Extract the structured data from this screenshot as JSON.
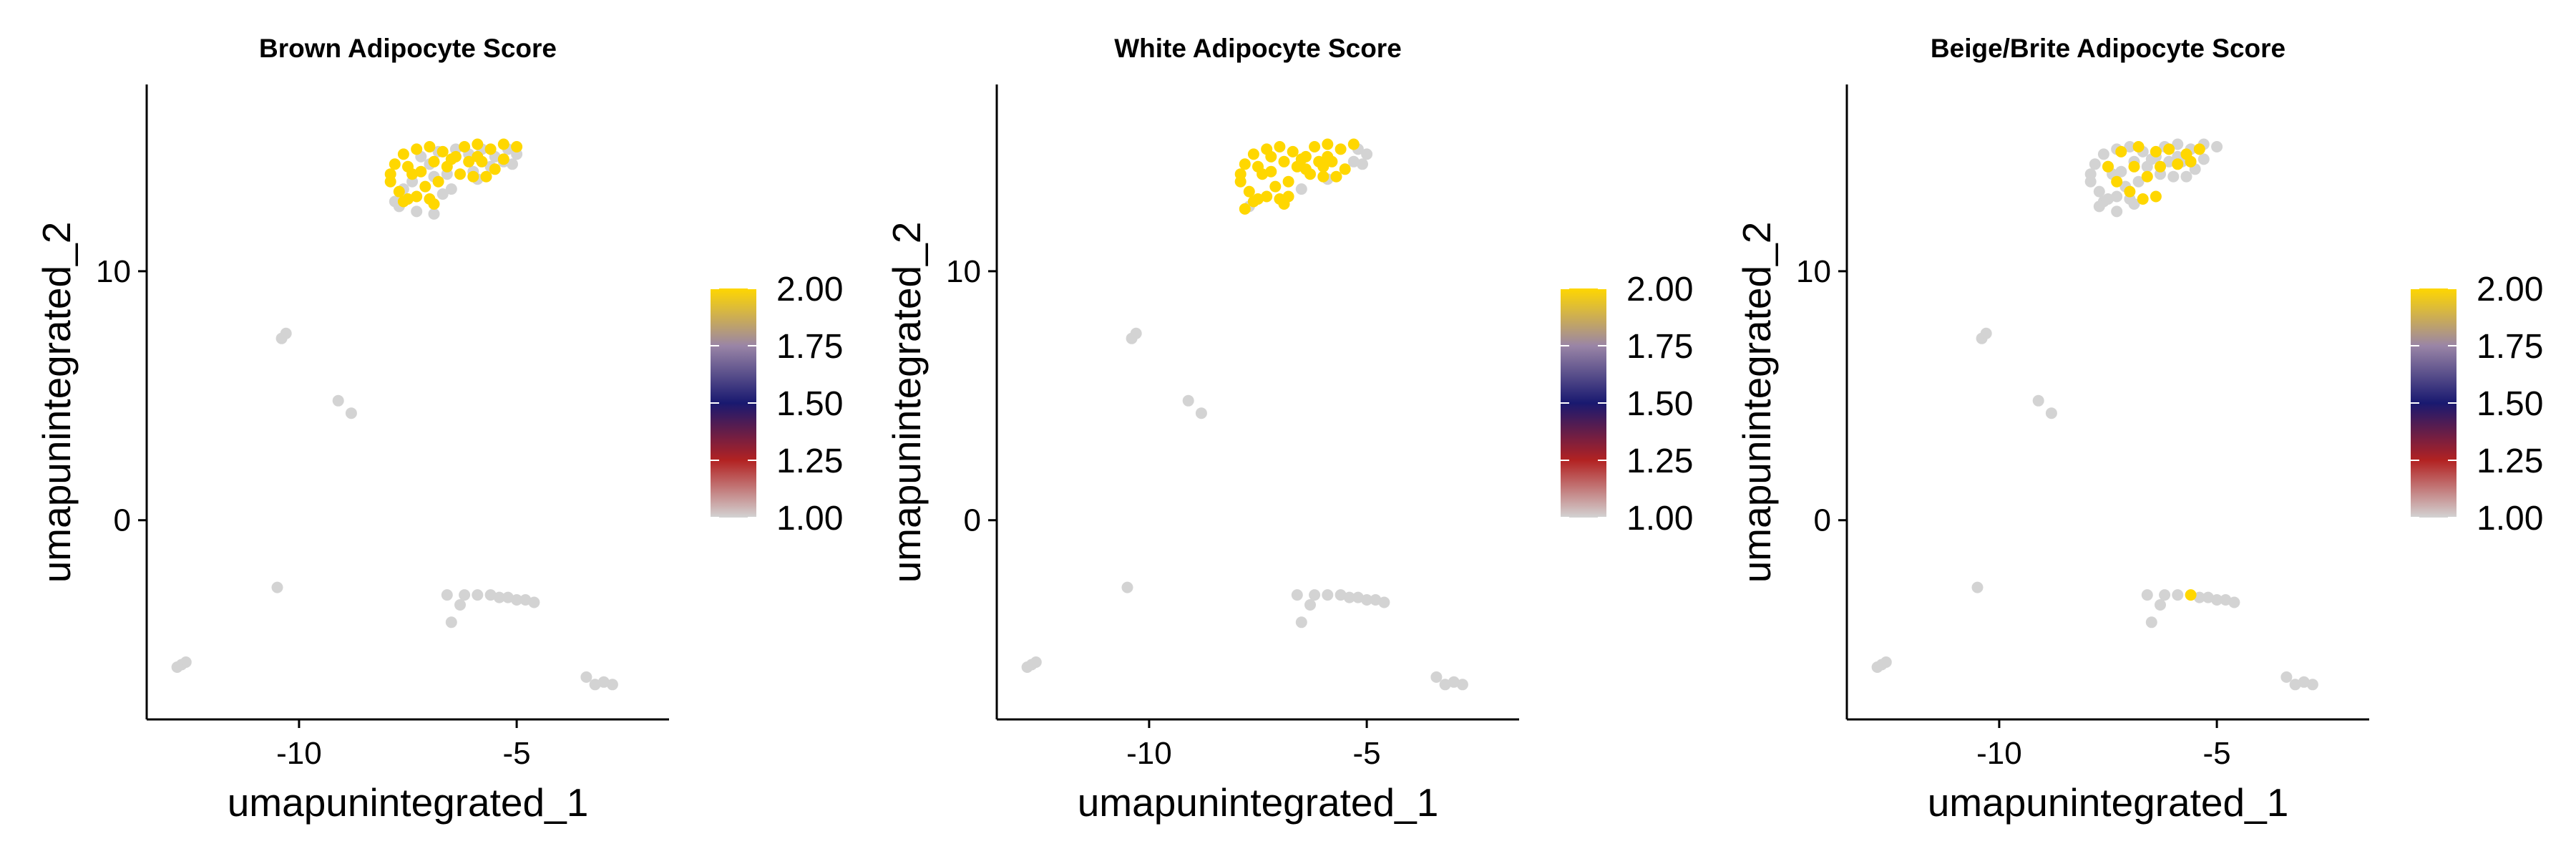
{
  "chart_data": [
    {
      "type": "scatter",
      "title": "Brown Adipocyte Score",
      "xlabel": "umapunintegrated_1",
      "ylabel": "umapunintegrated_2",
      "xlim": [
        -13.5,
        -1.5
      ],
      "ylim": [
        -8,
        17.5
      ],
      "xticks": [
        -10,
        -5
      ],
      "yticks": [
        0,
        10
      ],
      "colorbar": {
        "ticks": [
          "2.00",
          "1.75",
          "1.50",
          "1.25",
          "1.00"
        ],
        "min": 1.0,
        "max": 2.0
      },
      "series": [
        {
          "color": "#d3d3d3",
          "label_value": 1,
          "points": [
            [
              -7.2,
              14.6
            ],
            [
              -7.0,
              14.3
            ],
            [
              -6.8,
              14.8
            ],
            [
              -6.4,
              14.9
            ],
            [
              -6.1,
              14.7
            ],
            [
              -5.8,
              14.9
            ],
            [
              -5.5,
              14.6
            ],
            [
              -5.2,
              14.9
            ],
            [
              -5.0,
              14.7
            ],
            [
              -7.6,
              13.3
            ],
            [
              -7.8,
              12.8
            ],
            [
              -7.4,
              13.6
            ],
            [
              -6.9,
              13.8
            ],
            [
              -6.6,
              13.9
            ],
            [
              -6.5,
              13.3
            ],
            [
              -6.0,
              14.0
            ],
            [
              -5.6,
              14.2
            ],
            [
              -5.3,
              14.4
            ],
            [
              -5.1,
              14.3
            ],
            [
              -7.7,
              12.6
            ],
            [
              -7.3,
              12.4
            ],
            [
              -6.9,
              12.3
            ],
            [
              -6.7,
              13.1
            ],
            [
              -5.9,
              13.7
            ],
            [
              -10.4,
              7.3
            ],
            [
              -10.3,
              7.5
            ],
            [
              -9.1,
              4.8
            ],
            [
              -8.8,
              4.3
            ],
            [
              -10.5,
              -2.7
            ],
            [
              -6.6,
              -3.0
            ],
            [
              -6.2,
              -3.0
            ],
            [
              -5.9,
              -3.0
            ],
            [
              -5.6,
              -3.0
            ],
            [
              -5.4,
              -3.1
            ],
            [
              -5.2,
              -3.1
            ],
            [
              -5.0,
              -3.2
            ],
            [
              -4.8,
              -3.2
            ],
            [
              -4.6,
              -3.3
            ],
            [
              -6.3,
              -3.4
            ],
            [
              -6.5,
              -4.1
            ],
            [
              -12.7,
              -5.8
            ],
            [
              -12.6,
              -5.7
            ],
            [
              -12.8,
              -5.9
            ],
            [
              -3.4,
              -6.3
            ],
            [
              -3.2,
              -6.6
            ],
            [
              -3.0,
              -6.5
            ],
            [
              -2.8,
              -6.6
            ]
          ]
        },
        {
          "color": "#ffd700",
          "label_value": 2,
          "points": [
            [
              -7.6,
              14.7
            ],
            [
              -7.3,
              14.9
            ],
            [
              -7.0,
              15.0
            ],
            [
              -6.7,
              14.8
            ],
            [
              -6.4,
              14.6
            ],
            [
              -6.2,
              15.0
            ],
            [
              -5.9,
              15.1
            ],
            [
              -5.6,
              14.9
            ],
            [
              -5.3,
              15.1
            ],
            [
              -5.0,
              15.0
            ],
            [
              -7.8,
              14.3
            ],
            [
              -7.5,
              14.2
            ],
            [
              -7.2,
              14.0
            ],
            [
              -6.9,
              14.4
            ],
            [
              -6.6,
              14.2
            ],
            [
              -6.1,
              14.4
            ],
            [
              -5.8,
              14.4
            ],
            [
              -5.5,
              14.1
            ],
            [
              -5.3,
              14.5
            ],
            [
              -7.9,
              13.6
            ],
            [
              -7.7,
              13.2
            ],
            [
              -7.4,
              13.9
            ],
            [
              -7.1,
              13.4
            ],
            [
              -6.8,
              13.6
            ],
            [
              -6.3,
              13.9
            ],
            [
              -6.0,
              13.8
            ],
            [
              -5.7,
              13.8
            ],
            [
              -7.5,
              12.9
            ],
            [
              -7.3,
              13.0
            ],
            [
              -7.0,
              12.9
            ],
            [
              -6.9,
              12.7
            ],
            [
              -7.6,
              12.8
            ],
            [
              -7.9,
              13.9
            ],
            [
              -5.9,
              14.6
            ],
            [
              -6.5,
              14.5
            ]
          ]
        }
      ]
    },
    {
      "type": "scatter",
      "title": "White Adipocyte Score",
      "xlabel": "umapunintegrated_1",
      "ylabel": "umapunintegrated_2",
      "xlim": [
        -13.5,
        -1.5
      ],
      "ylim": [
        -8,
        17.5
      ],
      "xticks": [
        -10,
        -5
      ],
      "yticks": [
        0,
        10
      ],
      "colorbar": {
        "ticks": [
          "2.00",
          "1.75",
          "1.50",
          "1.25",
          "1.00"
        ],
        "min": 1.0,
        "max": 2.0
      },
      "series": [
        {
          "color": "#d3d3d3",
          "label_value": 1,
          "points": [
            [
              -5.2,
              14.9
            ],
            [
              -5.0,
              14.7
            ],
            [
              -5.1,
              14.3
            ],
            [
              -5.3,
              14.4
            ],
            [
              -6.5,
              13.3
            ],
            [
              -5.9,
              13.7
            ],
            [
              -7.7,
              12.6
            ],
            [
              -10.4,
              7.3
            ],
            [
              -10.3,
              7.5
            ],
            [
              -9.1,
              4.8
            ],
            [
              -8.8,
              4.3
            ],
            [
              -10.5,
              -2.7
            ],
            [
              -6.6,
              -3.0
            ],
            [
              -6.2,
              -3.0
            ],
            [
              -5.9,
              -3.0
            ],
            [
              -5.6,
              -3.0
            ],
            [
              -5.4,
              -3.1
            ],
            [
              -5.2,
              -3.1
            ],
            [
              -5.0,
              -3.2
            ],
            [
              -4.8,
              -3.2
            ],
            [
              -4.6,
              -3.3
            ],
            [
              -6.3,
              -3.4
            ],
            [
              -6.5,
              -4.1
            ],
            [
              -12.7,
              -5.8
            ],
            [
              -12.6,
              -5.7
            ],
            [
              -12.8,
              -5.9
            ],
            [
              -3.4,
              -6.3
            ],
            [
              -3.2,
              -6.6
            ],
            [
              -3.0,
              -6.5
            ],
            [
              -2.8,
              -6.6
            ]
          ]
        },
        {
          "color": "#ffd700",
          "label_value": 2,
          "points": [
            [
              -7.6,
              14.7
            ],
            [
              -7.3,
              14.9
            ],
            [
              -7.0,
              15.0
            ],
            [
              -6.7,
              14.8
            ],
            [
              -6.4,
              14.6
            ],
            [
              -6.2,
              15.0
            ],
            [
              -5.9,
              15.1
            ],
            [
              -5.6,
              14.9
            ],
            [
              -5.3,
              15.1
            ],
            [
              -7.8,
              14.3
            ],
            [
              -7.5,
              14.2
            ],
            [
              -7.2,
              14.0
            ],
            [
              -6.9,
              14.4
            ],
            [
              -6.6,
              14.2
            ],
            [
              -6.1,
              14.4
            ],
            [
              -5.8,
              14.4
            ],
            [
              -5.5,
              14.1
            ],
            [
              -7.9,
              13.6
            ],
            [
              -7.7,
              13.2
            ],
            [
              -7.4,
              13.9
            ],
            [
              -7.1,
              13.4
            ],
            [
              -6.8,
              13.6
            ],
            [
              -6.3,
              13.9
            ],
            [
              -6.0,
              13.8
            ],
            [
              -5.7,
              13.8
            ],
            [
              -7.5,
              12.9
            ],
            [
              -7.3,
              13.0
            ],
            [
              -7.0,
              12.9
            ],
            [
              -6.9,
              12.7
            ],
            [
              -7.6,
              12.8
            ],
            [
              -7.9,
              13.9
            ],
            [
              -5.9,
              14.6
            ],
            [
              -6.5,
              14.5
            ],
            [
              -7.2,
              14.6
            ],
            [
              -6.8,
              13.0
            ],
            [
              -7.8,
              12.5
            ],
            [
              -6.4,
              14.1
            ],
            [
              -6.0,
              14.2
            ]
          ]
        }
      ]
    },
    {
      "type": "scatter",
      "title": "Beige/Brite Adipocyte Score",
      "xlabel": "umapunintegrated_1",
      "ylabel": "umapunintegrated_2",
      "xlim": [
        -13.5,
        -1.5
      ],
      "ylim": [
        -8,
        17.5
      ],
      "xticks": [
        -10,
        -5
      ],
      "yticks": [
        0,
        10
      ],
      "colorbar": {
        "ticks": [
          "2.00",
          "1.75",
          "1.50",
          "1.25",
          "1.00"
        ],
        "min": 1.0,
        "max": 2.0
      },
      "series": [
        {
          "color": "#d3d3d3",
          "label_value": 1,
          "points": [
            [
              -7.6,
              14.7
            ],
            [
              -7.3,
              14.9
            ],
            [
              -7.0,
              15.0
            ],
            [
              -6.7,
              14.8
            ],
            [
              -6.4,
              14.6
            ],
            [
              -6.2,
              15.0
            ],
            [
              -5.9,
              15.1
            ],
            [
              -5.6,
              14.9
            ],
            [
              -5.3,
              15.1
            ],
            [
              -5.0,
              15.0
            ],
            [
              -7.8,
              14.3
            ],
            [
              -7.5,
              14.2
            ],
            [
              -7.2,
              14.0
            ],
            [
              -6.9,
              14.4
            ],
            [
              -6.6,
              14.2
            ],
            [
              -6.1,
              14.4
            ],
            [
              -5.8,
              14.4
            ],
            [
              -5.5,
              14.1
            ],
            [
              -5.3,
              14.5
            ],
            [
              -7.9,
              13.6
            ],
            [
              -7.7,
              13.2
            ],
            [
              -7.4,
              13.9
            ],
            [
              -7.1,
              13.4
            ],
            [
              -6.8,
              13.6
            ],
            [
              -6.3,
              13.9
            ],
            [
              -6.0,
              13.8
            ],
            [
              -5.7,
              13.8
            ],
            [
              -7.5,
              12.9
            ],
            [
              -7.3,
              13.0
            ],
            [
              -7.0,
              12.9
            ],
            [
              -6.9,
              12.7
            ],
            [
              -7.6,
              12.8
            ],
            [
              -7.9,
              13.9
            ],
            [
              -5.9,
              14.6
            ],
            [
              -6.5,
              14.5
            ],
            [
              -7.7,
              12.6
            ],
            [
              -7.3,
              12.4
            ],
            [
              -10.4,
              7.3
            ],
            [
              -10.3,
              7.5
            ],
            [
              -9.1,
              4.8
            ],
            [
              -8.8,
              4.3
            ],
            [
              -10.5,
              -2.7
            ],
            [
              -6.6,
              -3.0
            ],
            [
              -6.2,
              -3.0
            ],
            [
              -5.9,
              -3.0
            ],
            [
              -5.4,
              -3.1
            ],
            [
              -5.2,
              -3.1
            ],
            [
              -5.0,
              -3.2
            ],
            [
              -4.8,
              -3.2
            ],
            [
              -4.6,
              -3.3
            ],
            [
              -6.3,
              -3.4
            ],
            [
              -6.5,
              -4.1
            ],
            [
              -12.7,
              -5.8
            ],
            [
              -12.6,
              -5.7
            ],
            [
              -12.8,
              -5.9
            ],
            [
              -3.4,
              -6.3
            ],
            [
              -3.2,
              -6.6
            ],
            [
              -3.0,
              -6.5
            ],
            [
              -2.8,
              -6.6
            ]
          ]
        },
        {
          "color": "#ffd700",
          "label_value": 2,
          "points": [
            [
              -7.2,
              14.8
            ],
            [
              -6.8,
              15.0
            ],
            [
              -6.4,
              14.8
            ],
            [
              -6.1,
              14.9
            ],
            [
              -5.7,
              14.7
            ],
            [
              -5.4,
              14.9
            ],
            [
              -7.5,
              14.2
            ],
            [
              -6.9,
              14.2
            ],
            [
              -6.3,
              14.2
            ],
            [
              -5.9,
              14.3
            ],
            [
              -5.6,
              14.4
            ],
            [
              -7.3,
              13.6
            ],
            [
              -6.6,
              13.8
            ],
            [
              -7.0,
              13.2
            ],
            [
              -6.7,
              12.9
            ],
            [
              -6.4,
              13.0
            ],
            [
              -5.6,
              -3.0
            ]
          ]
        }
      ]
    }
  ]
}
